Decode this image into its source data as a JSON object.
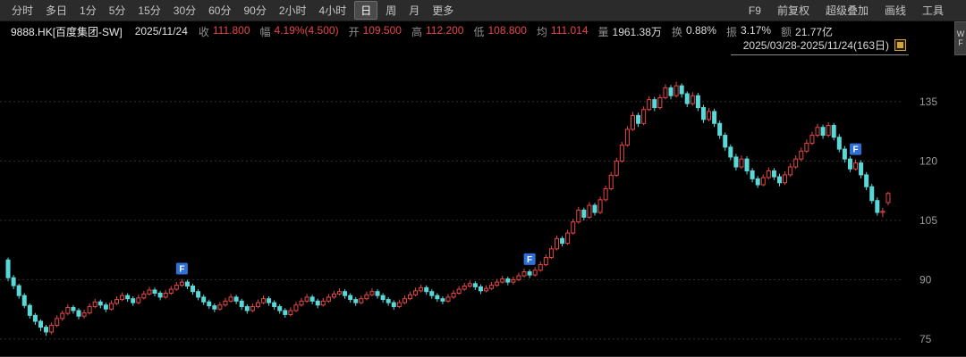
{
  "toolbar": {
    "periods": [
      "分时",
      "多日",
      "1分",
      "5分",
      "15分",
      "30分",
      "60分",
      "90分",
      "2小时",
      "4小时",
      "日",
      "周",
      "月",
      "更多"
    ],
    "selected_period": "日",
    "right_items": [
      "F9",
      "前复权",
      "超级叠加",
      "画线",
      "工具"
    ]
  },
  "info_bar": {
    "symbol": "9888.HK[百度集团-SW]",
    "date": "2025/11/24",
    "fields": [
      {
        "label": "收",
        "value": "111.800",
        "color": "up"
      },
      {
        "label": "幅",
        "value": "4.19%(4.500)",
        "color": "up"
      },
      {
        "label": "开",
        "value": "109.500",
        "color": "up"
      },
      {
        "label": "高",
        "value": "112.200",
        "color": "up"
      },
      {
        "label": "低",
        "value": "108.800",
        "color": "up"
      },
      {
        "label": "均",
        "value": "111.014",
        "color": "up"
      },
      {
        "label": "量",
        "value": "1961.38万",
        "color": "neutral"
      },
      {
        "label": "换",
        "value": "0.88%",
        "color": "neutral"
      },
      {
        "label": "振",
        "value": "3.17%",
        "color": "neutral"
      },
      {
        "label": "额",
        "value": "21.77亿",
        "color": "neutral"
      }
    ]
  },
  "range_label": {
    "text": "2025/03/28-2025/11/24(163日)"
  },
  "side_tab": {
    "text": "WF"
  },
  "chart_data": {
    "type": "candlestick",
    "period": "日",
    "y_ticks": [
      135,
      120,
      105,
      90,
      75
    ],
    "y_range": [
      70.7,
      147.6
    ],
    "grid": "dotted-horizontal",
    "colors": {
      "up": "#e64646",
      "down": "#5ad8d8",
      "grid": "#333333",
      "axis_text": "#9a9a9a",
      "flag_bg": "#2f6fd6"
    },
    "flags": [
      {
        "index": 32,
        "label": "F"
      },
      {
        "index": 96,
        "label": "F"
      },
      {
        "index": 156,
        "label": "F"
      }
    ],
    "candles": [
      [
        95.0,
        95.6,
        89.6,
        90.5
      ],
      [
        90.5,
        91.2,
        87.6,
        88.5
      ],
      [
        88.5,
        89.0,
        85.2,
        86.0
      ],
      [
        86.0,
        86.6,
        82.8,
        83.5
      ],
      [
        83.5,
        84.0,
        80.2,
        81.0
      ],
      [
        81.0,
        81.6,
        78.6,
        79.5
      ],
      [
        79.5,
        80.0,
        77.0,
        78.0
      ],
      [
        78.0,
        78.6,
        75.8,
        76.8
      ],
      [
        76.8,
        79.2,
        76.2,
        78.5
      ],
      [
        78.5,
        81.0,
        78.0,
        80.2
      ],
      [
        80.2,
        82.2,
        79.6,
        81.5
      ],
      [
        81.5,
        83.8,
        81.0,
        83.0
      ],
      [
        83.0,
        83.6,
        81.4,
        82.2
      ],
      [
        82.2,
        82.8,
        80.0,
        80.8
      ],
      [
        80.8,
        82.4,
        80.2,
        81.6
      ],
      [
        81.6,
        84.0,
        81.2,
        83.2
      ],
      [
        83.2,
        85.2,
        82.8,
        84.4
      ],
      [
        84.4,
        85.0,
        82.8,
        83.6
      ],
      [
        83.6,
        84.2,
        81.8,
        82.6
      ],
      [
        82.6,
        84.8,
        82.2,
        84.0
      ],
      [
        84.0,
        85.8,
        83.6,
        85.0
      ],
      [
        85.0,
        86.8,
        84.6,
        86.0
      ],
      [
        86.0,
        86.6,
        84.4,
        85.2
      ],
      [
        85.2,
        85.8,
        83.4,
        84.2
      ],
      [
        84.2,
        86.2,
        83.8,
        85.4
      ],
      [
        85.4,
        87.2,
        85.0,
        86.4
      ],
      [
        86.4,
        88.2,
        86.0,
        87.4
      ],
      [
        87.4,
        88.0,
        85.8,
        86.6
      ],
      [
        86.6,
        87.2,
        84.8,
        85.6
      ],
      [
        85.6,
        87.4,
        85.2,
        86.6
      ],
      [
        86.6,
        88.4,
        86.2,
        87.6
      ],
      [
        87.6,
        89.4,
        87.2,
        88.6
      ],
      [
        88.6,
        90.2,
        88.2,
        89.4
      ],
      [
        89.4,
        90.0,
        87.6,
        88.4
      ],
      [
        88.4,
        89.0,
        86.2,
        87.0
      ],
      [
        87.0,
        87.6,
        84.8,
        85.6
      ],
      [
        85.6,
        86.2,
        83.6,
        84.4
      ],
      [
        84.4,
        85.0,
        82.6,
        83.4
      ],
      [
        83.4,
        84.0,
        81.8,
        82.6
      ],
      [
        82.6,
        84.4,
        82.2,
        83.6
      ],
      [
        83.6,
        85.4,
        83.2,
        84.6
      ],
      [
        84.6,
        86.4,
        84.2,
        85.6
      ],
      [
        85.6,
        86.2,
        83.8,
        84.6
      ],
      [
        84.6,
        85.2,
        82.4,
        83.2
      ],
      [
        83.2,
        83.8,
        81.4,
        82.2
      ],
      [
        82.2,
        84.0,
        81.8,
        83.2
      ],
      [
        83.2,
        85.0,
        82.8,
        84.2
      ],
      [
        84.2,
        86.0,
        83.8,
        85.2
      ],
      [
        85.2,
        85.8,
        83.4,
        84.2
      ],
      [
        84.2,
        84.8,
        82.4,
        83.2
      ],
      [
        83.2,
        83.8,
        81.4,
        82.2
      ],
      [
        82.2,
        82.8,
        80.4,
        81.2
      ],
      [
        81.2,
        83.0,
        80.8,
        82.2
      ],
      [
        82.2,
        84.4,
        81.8,
        83.6
      ],
      [
        83.6,
        85.4,
        83.2,
        84.6
      ],
      [
        84.6,
        86.4,
        84.2,
        85.6
      ],
      [
        85.6,
        86.2,
        83.8,
        84.6
      ],
      [
        84.6,
        85.2,
        82.8,
        83.6
      ],
      [
        83.6,
        85.4,
        83.2,
        84.6
      ],
      [
        84.6,
        86.4,
        84.2,
        85.6
      ],
      [
        85.6,
        87.2,
        85.2,
        86.4
      ],
      [
        86.4,
        87.8,
        86.0,
        87.0
      ],
      [
        87.0,
        87.6,
        85.2,
        86.0
      ],
      [
        86.0,
        86.6,
        84.2,
        85.0
      ],
      [
        85.0,
        85.6,
        83.4,
        84.2
      ],
      [
        84.2,
        86.0,
        83.8,
        85.2
      ],
      [
        85.2,
        87.0,
        84.8,
        86.2
      ],
      [
        86.2,
        87.8,
        85.8,
        87.0
      ],
      [
        87.0,
        87.6,
        85.2,
        86.0
      ],
      [
        86.0,
        86.6,
        84.2,
        85.0
      ],
      [
        85.0,
        85.6,
        83.4,
        84.2
      ],
      [
        84.2,
        84.8,
        82.4,
        83.2
      ],
      [
        83.2,
        85.0,
        82.8,
        84.2
      ],
      [
        84.2,
        86.0,
        83.8,
        85.2
      ],
      [
        85.2,
        87.0,
        84.8,
        86.2
      ],
      [
        86.2,
        88.0,
        85.8,
        87.2
      ],
      [
        87.2,
        88.8,
        86.8,
        88.0
      ],
      [
        88.0,
        88.6,
        86.2,
        87.0
      ],
      [
        87.0,
        87.6,
        85.2,
        86.0
      ],
      [
        86.0,
        86.6,
        84.4,
        85.2
      ],
      [
        85.2,
        85.8,
        83.8,
        84.6
      ],
      [
        84.6,
        86.4,
        84.2,
        85.6
      ],
      [
        85.6,
        87.4,
        85.2,
        86.6
      ],
      [
        86.6,
        88.4,
        86.2,
        87.6
      ],
      [
        87.6,
        89.2,
        87.2,
        88.4
      ],
      [
        88.4,
        89.8,
        88.0,
        89.0
      ],
      [
        89.0,
        89.6,
        87.4,
        88.2
      ],
      [
        88.2,
        88.8,
        86.4,
        87.2
      ],
      [
        87.2,
        88.6,
        86.8,
        87.8
      ],
      [
        87.8,
        89.4,
        87.4,
        88.6
      ],
      [
        88.6,
        90.2,
        88.2,
        89.4
      ],
      [
        89.4,
        91.0,
        89.0,
        90.2
      ],
      [
        90.2,
        90.8,
        88.6,
        89.4
      ],
      [
        89.4,
        90.8,
        88.8,
        90.0
      ],
      [
        90.0,
        91.8,
        89.6,
        91.0
      ],
      [
        91.0,
        92.8,
        90.6,
        92.0
      ],
      [
        92.0,
        92.6,
        90.4,
        91.2
      ],
      [
        91.2,
        93.2,
        90.8,
        92.4
      ],
      [
        92.4,
        94.6,
        92.0,
        93.8
      ],
      [
        93.8,
        96.4,
        93.4,
        95.6
      ],
      [
        95.6,
        98.6,
        95.2,
        97.8
      ],
      [
        97.8,
        101.2,
        97.4,
        100.4
      ],
      [
        100.4,
        101.0,
        98.4,
        99.2
      ],
      [
        99.2,
        102.6,
        98.8,
        101.8
      ],
      [
        101.8,
        105.4,
        101.4,
        104.6
      ],
      [
        104.6,
        108.4,
        104.2,
        107.6
      ],
      [
        107.6,
        108.2,
        105.0,
        105.8
      ],
      [
        105.8,
        109.6,
        105.4,
        108.8
      ],
      [
        108.8,
        109.4,
        106.2,
        107.0
      ],
      [
        107.0,
        111.0,
        106.6,
        110.2
      ],
      [
        110.2,
        113.8,
        109.8,
        113.0
      ],
      [
        113.0,
        117.2,
        112.6,
        116.4
      ],
      [
        116.4,
        120.8,
        116.0,
        120.0
      ],
      [
        120.0,
        124.8,
        119.6,
        124.0
      ],
      [
        124.0,
        128.8,
        123.6,
        128.0
      ],
      [
        128.0,
        132.4,
        127.6,
        131.5
      ],
      [
        131.5,
        132.2,
        128.6,
        129.5
      ],
      [
        129.5,
        133.8,
        129.0,
        133.0
      ],
      [
        133.0,
        136.4,
        132.6,
        135.5
      ],
      [
        135.5,
        136.2,
        132.6,
        133.5
      ],
      [
        133.5,
        136.8,
        133.0,
        136.0
      ],
      [
        136.0,
        139.4,
        135.6,
        138.5
      ],
      [
        138.5,
        139.2,
        135.6,
        136.5
      ],
      [
        136.5,
        140.0,
        136.0,
        139.0
      ],
      [
        139.0,
        139.6,
        136.0,
        137.0
      ],
      [
        137.0,
        137.6,
        133.6,
        134.5
      ],
      [
        134.5,
        137.4,
        134.0,
        136.5
      ],
      [
        136.5,
        137.2,
        132.6,
        133.5
      ],
      [
        133.5,
        134.2,
        129.6,
        130.5
      ],
      [
        130.5,
        133.4,
        130.0,
        132.5
      ],
      [
        132.5,
        133.2,
        128.6,
        129.5
      ],
      [
        129.5,
        130.2,
        125.6,
        126.5
      ],
      [
        126.5,
        127.2,
        122.6,
        123.5
      ],
      [
        123.5,
        124.2,
        120.2,
        121.0
      ],
      [
        121.0,
        121.8,
        117.6,
        118.5
      ],
      [
        118.5,
        121.4,
        118.0,
        120.5
      ],
      [
        120.5,
        121.2,
        116.6,
        117.5
      ],
      [
        117.5,
        118.2,
        114.6,
        115.5
      ],
      [
        115.5,
        116.2,
        113.2,
        114.0
      ],
      [
        114.0,
        116.6,
        113.6,
        115.8
      ],
      [
        115.8,
        118.4,
        115.4,
        117.5
      ],
      [
        117.5,
        118.2,
        115.2,
        116.0
      ],
      [
        116.0,
        116.8,
        113.6,
        114.5
      ],
      [
        114.5,
        117.4,
        114.0,
        116.5
      ],
      [
        116.5,
        119.4,
        116.0,
        118.5
      ],
      [
        118.5,
        121.4,
        118.0,
        120.5
      ],
      [
        120.5,
        123.4,
        120.0,
        122.5
      ],
      [
        122.5,
        125.4,
        122.0,
        124.5
      ],
      [
        124.5,
        127.4,
        124.0,
        126.5
      ],
      [
        126.5,
        129.4,
        126.0,
        128.5
      ],
      [
        128.5,
        129.2,
        125.6,
        126.5
      ],
      [
        126.5,
        129.8,
        126.0,
        129.0
      ],
      [
        129.0,
        129.6,
        125.2,
        126.0
      ],
      [
        126.0,
        126.8,
        122.2,
        123.0
      ],
      [
        123.0,
        123.8,
        119.6,
        120.5
      ],
      [
        120.5,
        121.2,
        117.2,
        118.0
      ],
      [
        118.0,
        120.4,
        117.6,
        119.5
      ],
      [
        119.5,
        120.2,
        115.6,
        116.5
      ],
      [
        116.5,
        117.2,
        112.6,
        113.5
      ],
      [
        113.5,
        114.2,
        109.2,
        110.0
      ],
      [
        110.0,
        110.8,
        106.2,
        107.0
      ],
      [
        107.0,
        108.2,
        105.8,
        107.3
      ],
      [
        109.5,
        112.2,
        108.8,
        111.8
      ]
    ]
  }
}
